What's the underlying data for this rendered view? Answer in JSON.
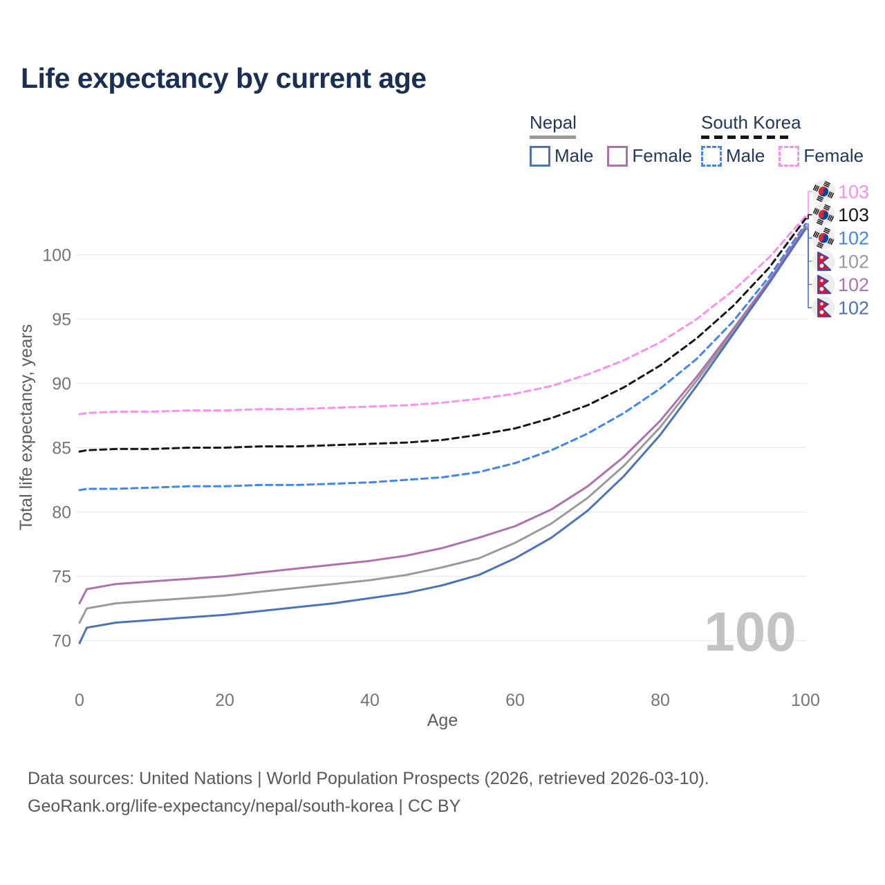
{
  "title": "Life expectancy by current age",
  "legend": {
    "groups": [
      {
        "country": "Nepal",
        "line_style": "solid",
        "underline_color": "#999999",
        "items": [
          {
            "label": "Male",
            "color": "#4a73b9",
            "dashed": false
          },
          {
            "label": "Female",
            "color": "#b070ae",
            "dashed": false
          }
        ]
      },
      {
        "country": "South Korea",
        "line_style": "dashed",
        "underline_color": "#161616",
        "items": [
          {
            "label": "Male",
            "color": "#3e86f3",
            "dashed": true
          },
          {
            "label": "Female",
            "color": "#fb8ff2",
            "dashed": true
          }
        ]
      }
    ]
  },
  "chart_data": {
    "type": "line",
    "title": "Life expectancy by current age",
    "xlabel": "Age",
    "ylabel": "Total life expectancy, years",
    "x_ticks": [
      0,
      20,
      40,
      60,
      80,
      100
    ],
    "y_ticks": [
      70,
      75,
      80,
      85,
      90,
      95,
      100
    ],
    "xlim": [
      0,
      100
    ],
    "ylim": [
      69.5,
      103.5
    ],
    "grid": "horizontal",
    "watermark": "100",
    "x": [
      0,
      1,
      5,
      10,
      15,
      20,
      25,
      30,
      35,
      40,
      45,
      50,
      55,
      60,
      65,
      70,
      75,
      80,
      85,
      90,
      95,
      100
    ],
    "series": [
      {
        "id": "sk-female",
        "country": "South Korea",
        "sex": "Female",
        "flag": "KR",
        "color": "#fb8ff2",
        "dashed": true,
        "end_label": "103",
        "label_color": "#fb8ff2",
        "values": [
          87.6,
          87.7,
          87.8,
          87.8,
          87.9,
          87.9,
          88.0,
          88.0,
          88.1,
          88.2,
          88.3,
          88.5,
          88.8,
          89.2,
          89.8,
          90.7,
          91.8,
          93.2,
          95.0,
          97.2,
          99.8,
          103.0
        ]
      },
      {
        "id": "sk-both",
        "country": "South Korea",
        "sex": "Both sexes",
        "flag": "KR",
        "color": "#161616",
        "dashed": true,
        "end_label": "103",
        "label_color": "#161616",
        "values": [
          84.7,
          84.8,
          84.9,
          84.9,
          85.0,
          85.0,
          85.1,
          85.1,
          85.2,
          85.3,
          85.4,
          85.6,
          86.0,
          86.5,
          87.3,
          88.3,
          89.7,
          91.4,
          93.5,
          96.0,
          99.0,
          102.8
        ]
      },
      {
        "id": "sk-male",
        "country": "South Korea",
        "sex": "Male",
        "flag": "KR",
        "color": "#3e86f3",
        "dashed": true,
        "end_label": "102",
        "label_color": "#3e86f3",
        "values": [
          81.7,
          81.8,
          81.8,
          81.9,
          82.0,
          82.0,
          82.1,
          82.1,
          82.2,
          82.3,
          82.5,
          82.7,
          83.1,
          83.8,
          84.8,
          86.1,
          87.7,
          89.6,
          91.9,
          94.8,
          98.3,
          102.4
        ]
      },
      {
        "id": "np-both",
        "country": "Nepal",
        "sex": "Both sexes",
        "flag": "NP",
        "color": "#9a9a9a",
        "dashed": false,
        "end_label": "102",
        "label_color": "#9a9a9a",
        "values": [
          71.4,
          72.5,
          72.9,
          73.1,
          73.3,
          73.5,
          73.8,
          74.1,
          74.4,
          74.7,
          75.1,
          75.7,
          76.4,
          77.6,
          79.1,
          81.1,
          83.6,
          86.6,
          90.2,
          94.0,
          97.9,
          102.1
        ]
      },
      {
        "id": "np-female",
        "country": "Nepal",
        "sex": "Female",
        "flag": "NP",
        "color": "#b070ae",
        "dashed": false,
        "end_label": "102",
        "label_color": "#b070ae",
        "values": [
          72.9,
          74.0,
          74.4,
          74.6,
          74.8,
          75.0,
          75.3,
          75.6,
          75.9,
          76.2,
          76.6,
          77.2,
          78.0,
          78.9,
          80.2,
          82.0,
          84.3,
          87.1,
          90.5,
          94.2,
          98.0,
          102.2
        ]
      },
      {
        "id": "np-male",
        "country": "Nepal",
        "sex": "Male",
        "flag": "NP",
        "color": "#4a73b9",
        "dashed": false,
        "end_label": "102",
        "label_color": "#4a73b9",
        "values": [
          69.8,
          71.0,
          71.4,
          71.6,
          71.8,
          72.0,
          72.3,
          72.6,
          72.9,
          73.3,
          73.7,
          74.3,
          75.1,
          76.4,
          78.0,
          80.1,
          82.8,
          86.0,
          89.8,
          93.8,
          97.8,
          102.0
        ]
      }
    ]
  },
  "colors": {
    "title": "#1b2f52",
    "tick_label": "#757575",
    "axis_label": "#5e5e5e",
    "gridline": "#e9e9e9",
    "watermark": "#c3c3c3",
    "legend_text": "#22375a"
  },
  "footer": {
    "line1": "Data sources: United Nations | World Population Prospects (2026, retrieved 2026-03-10).",
    "line2": "GeoRank.org/life-expectancy/nepal/south-korea | CC BY"
  }
}
